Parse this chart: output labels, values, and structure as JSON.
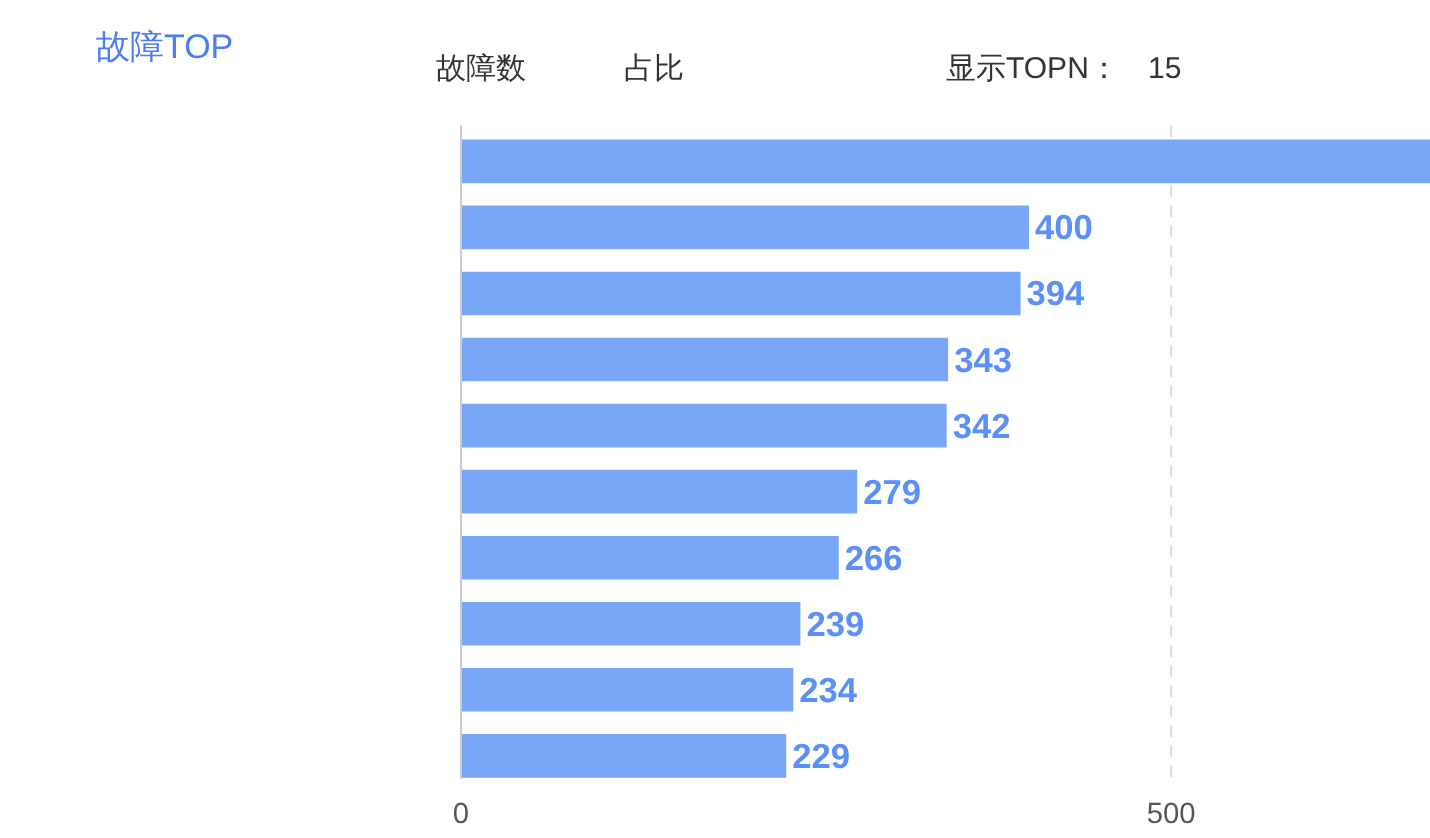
{
  "chart_data": {
    "type": "bar",
    "orientation": "horizontal",
    "title": "故障TOP",
    "annotations": [
      "故障数",
      "占比",
      "显示TOPN：",
      "15"
    ],
    "categories": [
      null,
      null,
      null,
      null,
      null,
      null,
      null,
      null,
      null,
      null
    ],
    "values": [
      683,
      400,
      394,
      343,
      342,
      279,
      266,
      239,
      234,
      229
    ],
    "value_labels": [
      null,
      "400",
      "394",
      "343",
      "342",
      "279",
      "266",
      "239",
      "234",
      "229"
    ],
    "color": "#7aa6f8",
    "xlim": [
      0,
      683
    ],
    "xticks": [
      0,
      500
    ],
    "grid": "x",
    "tick_labels": "x"
  }
}
